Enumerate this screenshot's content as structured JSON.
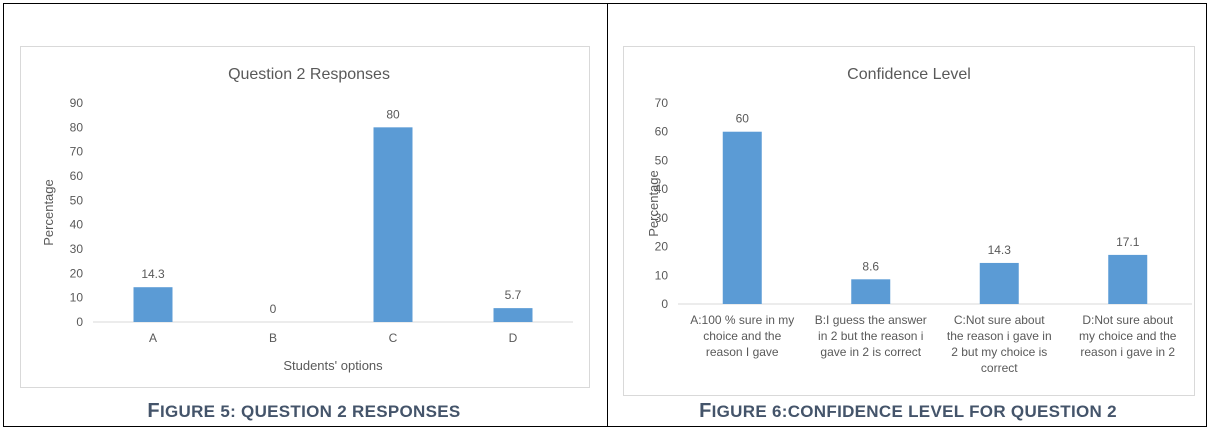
{
  "charts": [
    {
      "type": "bar",
      "title": "Question 2 Responses",
      "xlabel": "Students' options",
      "ylabel": "Percentage",
      "categories": [
        "A",
        "B",
        "C",
        "D"
      ],
      "values": [
        14.3,
        0,
        80,
        5.7
      ],
      "data_labels": [
        "14.3",
        "0",
        "80",
        "5.7"
      ],
      "ylim": [
        0,
        90
      ],
      "yticks": [
        "0",
        "10",
        "20",
        "30",
        "40",
        "50",
        "60",
        "70",
        "80",
        "90"
      ],
      "bar_color": "#5b9bd5",
      "grid": false
    },
    {
      "type": "bar",
      "title": "Confidence Level",
      "xlabel": "",
      "ylabel": "Percentage",
      "categories": [
        [
          "A:100 % sure in my",
          "choice and the",
          "reason I gave"
        ],
        [
          "B:I guess the answer",
          "in 2 but the reason i",
          "gave in 2 is correct"
        ],
        [
          "C:Not sure about",
          "the reason i gave in",
          "2  but my choice  is",
          "correct"
        ],
        [
          "D:Not sure about",
          "my choice and the",
          "reason i gave in 2"
        ]
      ],
      "values": [
        60,
        8.6,
        14.3,
        17.1
      ],
      "data_labels": [
        "60",
        "8.6",
        "14.3",
        "17.1"
      ],
      "ylim": [
        0,
        70
      ],
      "yticks": [
        "0",
        "10",
        "20",
        "30",
        "40",
        "50",
        "60",
        "70"
      ],
      "bar_color": "#5b9bd5",
      "grid": false
    }
  ],
  "captions": {
    "fig5_prefix": "F",
    "fig5_rest": "IGURE 5: Q",
    "fig5_tail": "UESTION 2 RESPONSES",
    "fig6_prefix": "F",
    "fig6_rest": "IGURE 6:C",
    "fig6_tail": "ONFIDENCE LEVEL FOR QUESTION 2"
  },
  "chart_data": [
    {
      "type": "bar",
      "title": "Question 2 Responses",
      "xlabel": "Students' options",
      "ylabel": "Percentage",
      "categories": [
        "A",
        "B",
        "C",
        "D"
      ],
      "values": [
        14.3,
        0,
        80,
        5.7
      ],
      "ylim": [
        0,
        90
      ]
    },
    {
      "type": "bar",
      "title": "Confidence Level",
      "xlabel": "",
      "ylabel": "Percentage",
      "categories": [
        "A:100 % sure in my choice and the reason I gave",
        "B:I guess the answer in 2 but the reason i gave in 2 is correct",
        "C:Not sure about the reason i gave in 2  but my choice  is correct",
        "D:Not sure about my choice and the reason i gave in 2"
      ],
      "values": [
        60,
        8.6,
        14.3,
        17.1
      ],
      "ylim": [
        0,
        70
      ]
    }
  ]
}
